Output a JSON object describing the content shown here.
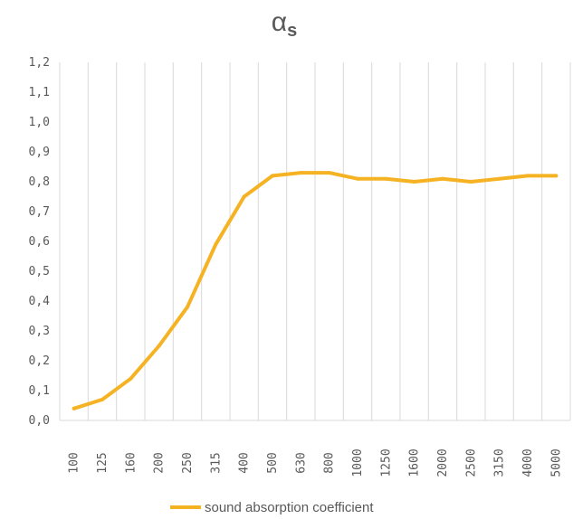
{
  "chart_data": {
    "type": "line",
    "title_main": "α",
    "title_sub": "s",
    "categories": [
      "100",
      "125",
      "160",
      "200",
      "250",
      "315",
      "400",
      "500",
      "630",
      "800",
      "1000",
      "1250",
      "1600",
      "2000",
      "2500",
      "3150",
      "4000",
      "5000"
    ],
    "series": [
      {
        "name": "sound absorption coefficient",
        "values": [
          0.04,
          0.07,
          0.14,
          0.25,
          0.38,
          0.59,
          0.75,
          0.82,
          0.83,
          0.83,
          0.81,
          0.81,
          0.8,
          0.81,
          0.8,
          0.81,
          0.82,
          0.82
        ],
        "color": "#F5B324"
      }
    ],
    "y_ticks": [
      "0,0",
      "0,1",
      "0,2",
      "0,3",
      "0,4",
      "0,5",
      "0,6",
      "0,7",
      "0,8",
      "0,9",
      "1,0",
      "1,1",
      "1,2"
    ],
    "ylim": [
      0,
      1.2
    ],
    "grid": "vertical",
    "legend_position": "bottom"
  }
}
